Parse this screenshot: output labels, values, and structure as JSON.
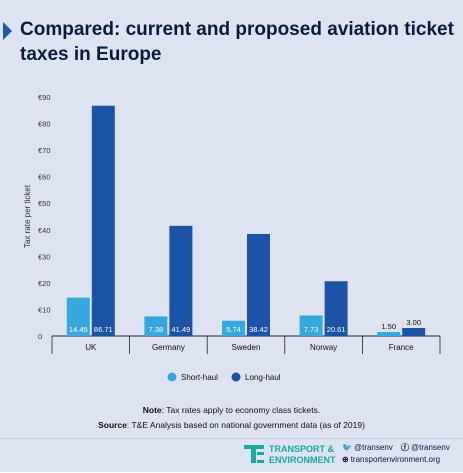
{
  "title": "Compared: current and proposed aviation ticket taxes in Europe",
  "colors": {
    "short_haul": "#35a8e0",
    "long_haul": "#1b53a6",
    "background": "#dde3f0",
    "accent": "#1b57b1"
  },
  "chart_data": {
    "type": "bar",
    "ylabel": "Tax rate per ticket",
    "ylim": [
      0,
      90
    ],
    "y_ticks": [
      "0",
      "€10",
      "€20",
      "€30",
      "€40",
      "€50",
      "€60",
      "€70",
      "€80",
      "€90"
    ],
    "y_tick_values": [
      0,
      10,
      20,
      30,
      40,
      50,
      60,
      70,
      80,
      90
    ],
    "categories": [
      "UK",
      "Germany",
      "Sweden",
      "Norway",
      "France"
    ],
    "series": [
      {
        "name": "Short-haul",
        "values": [
          14.45,
          7.38,
          5.74,
          7.73,
          1.5
        ],
        "labels": [
          "14.45",
          "7.38",
          "5.74",
          "7.73",
          "1.50"
        ]
      },
      {
        "name": "Long-haul",
        "values": [
          86.71,
          41.49,
          38.42,
          20.61,
          3.0
        ],
        "labels": [
          "86.71",
          "41.49",
          "38.42",
          "20.61",
          "3.00"
        ]
      }
    ],
    "legend_position": "bottom-center",
    "grid": false
  },
  "footnotes": {
    "note_label": "Note",
    "note_text": ": Tax rates apply to economy class tickets.",
    "source_label": "Source",
    "source_text": ": T&E Analysis based on national government data (as of 2019)"
  },
  "footer": {
    "logo_line1": "TRANSPORT &",
    "logo_line2": "ENVIRONMENT",
    "twitter": "@transenv",
    "facebook": "@transenv",
    "website": "transportenvironment.org",
    "logo_icon": "te-logo-icon"
  }
}
